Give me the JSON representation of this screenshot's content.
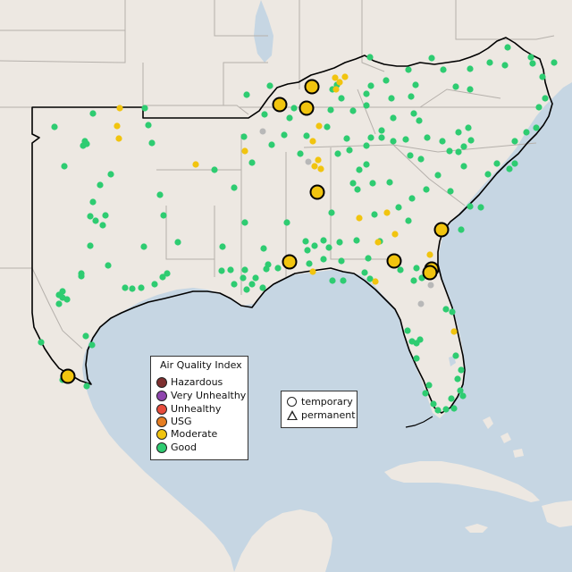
{
  "legend": {
    "title": "Air Quality Index",
    "items": [
      {
        "label": "Hazardous",
        "color": "#7e2f2f"
      },
      {
        "label": "Very Unhealthy",
        "color": "#8e44ad"
      },
      {
        "label": "Unhealthy",
        "color": "#e74c3c"
      },
      {
        "label": "USG",
        "color": "#e67e22"
      },
      {
        "label": "Moderate",
        "color": "#f1c40f"
      },
      {
        "label": "Good",
        "color": "#2ecc71"
      }
    ]
  },
  "site_legend": {
    "temporary": "temporary",
    "permanent": "permanent"
  },
  "colors": {
    "water": "#c6d6e3",
    "land": "#ede8e2",
    "region_outline": "#000000",
    "state_border": "#b5b0ab",
    "good": "#2ecc71",
    "moderate": "#f1c40f",
    "no_data": "#b8b8b8"
  }
}
